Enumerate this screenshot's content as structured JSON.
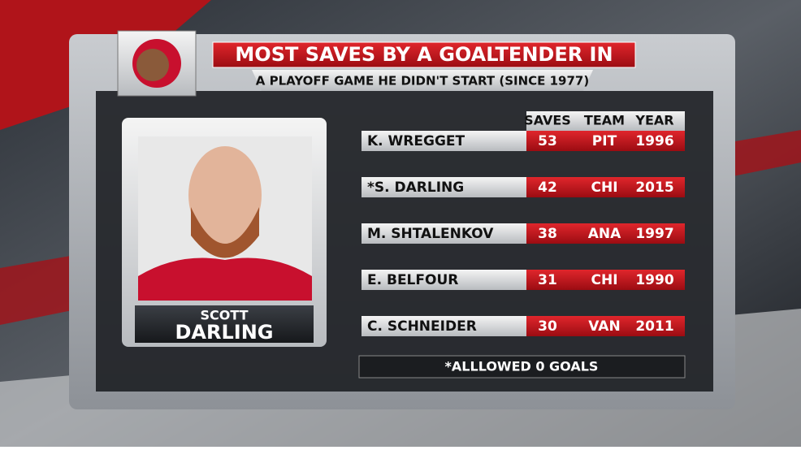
{
  "header": {
    "title": "MOST SAVES BY A GOALTENDER IN",
    "subtitle": "A PLAYOFF GAME HE DIDN'T START (SINCE 1977)"
  },
  "player": {
    "first_name": "SCOTT",
    "last_name": "DARLING"
  },
  "table": {
    "columns": [
      "SAVES",
      "TEAM",
      "YEAR"
    ],
    "rows": [
      [
        "K. WREGGET",
        53,
        "PIT",
        1996
      ],
      [
        "*S. DARLING",
        42,
        "CHI",
        2015
      ],
      [
        "M. SHTALENKOV",
        38,
        "ANA",
        1997
      ],
      [
        "E. BELFOUR",
        31,
        "CHI",
        1990
      ],
      [
        "C. SCHNEIDER",
        30,
        "VAN",
        2011
      ]
    ]
  },
  "footnote": "*ALLLOWED 0 GOALS"
}
